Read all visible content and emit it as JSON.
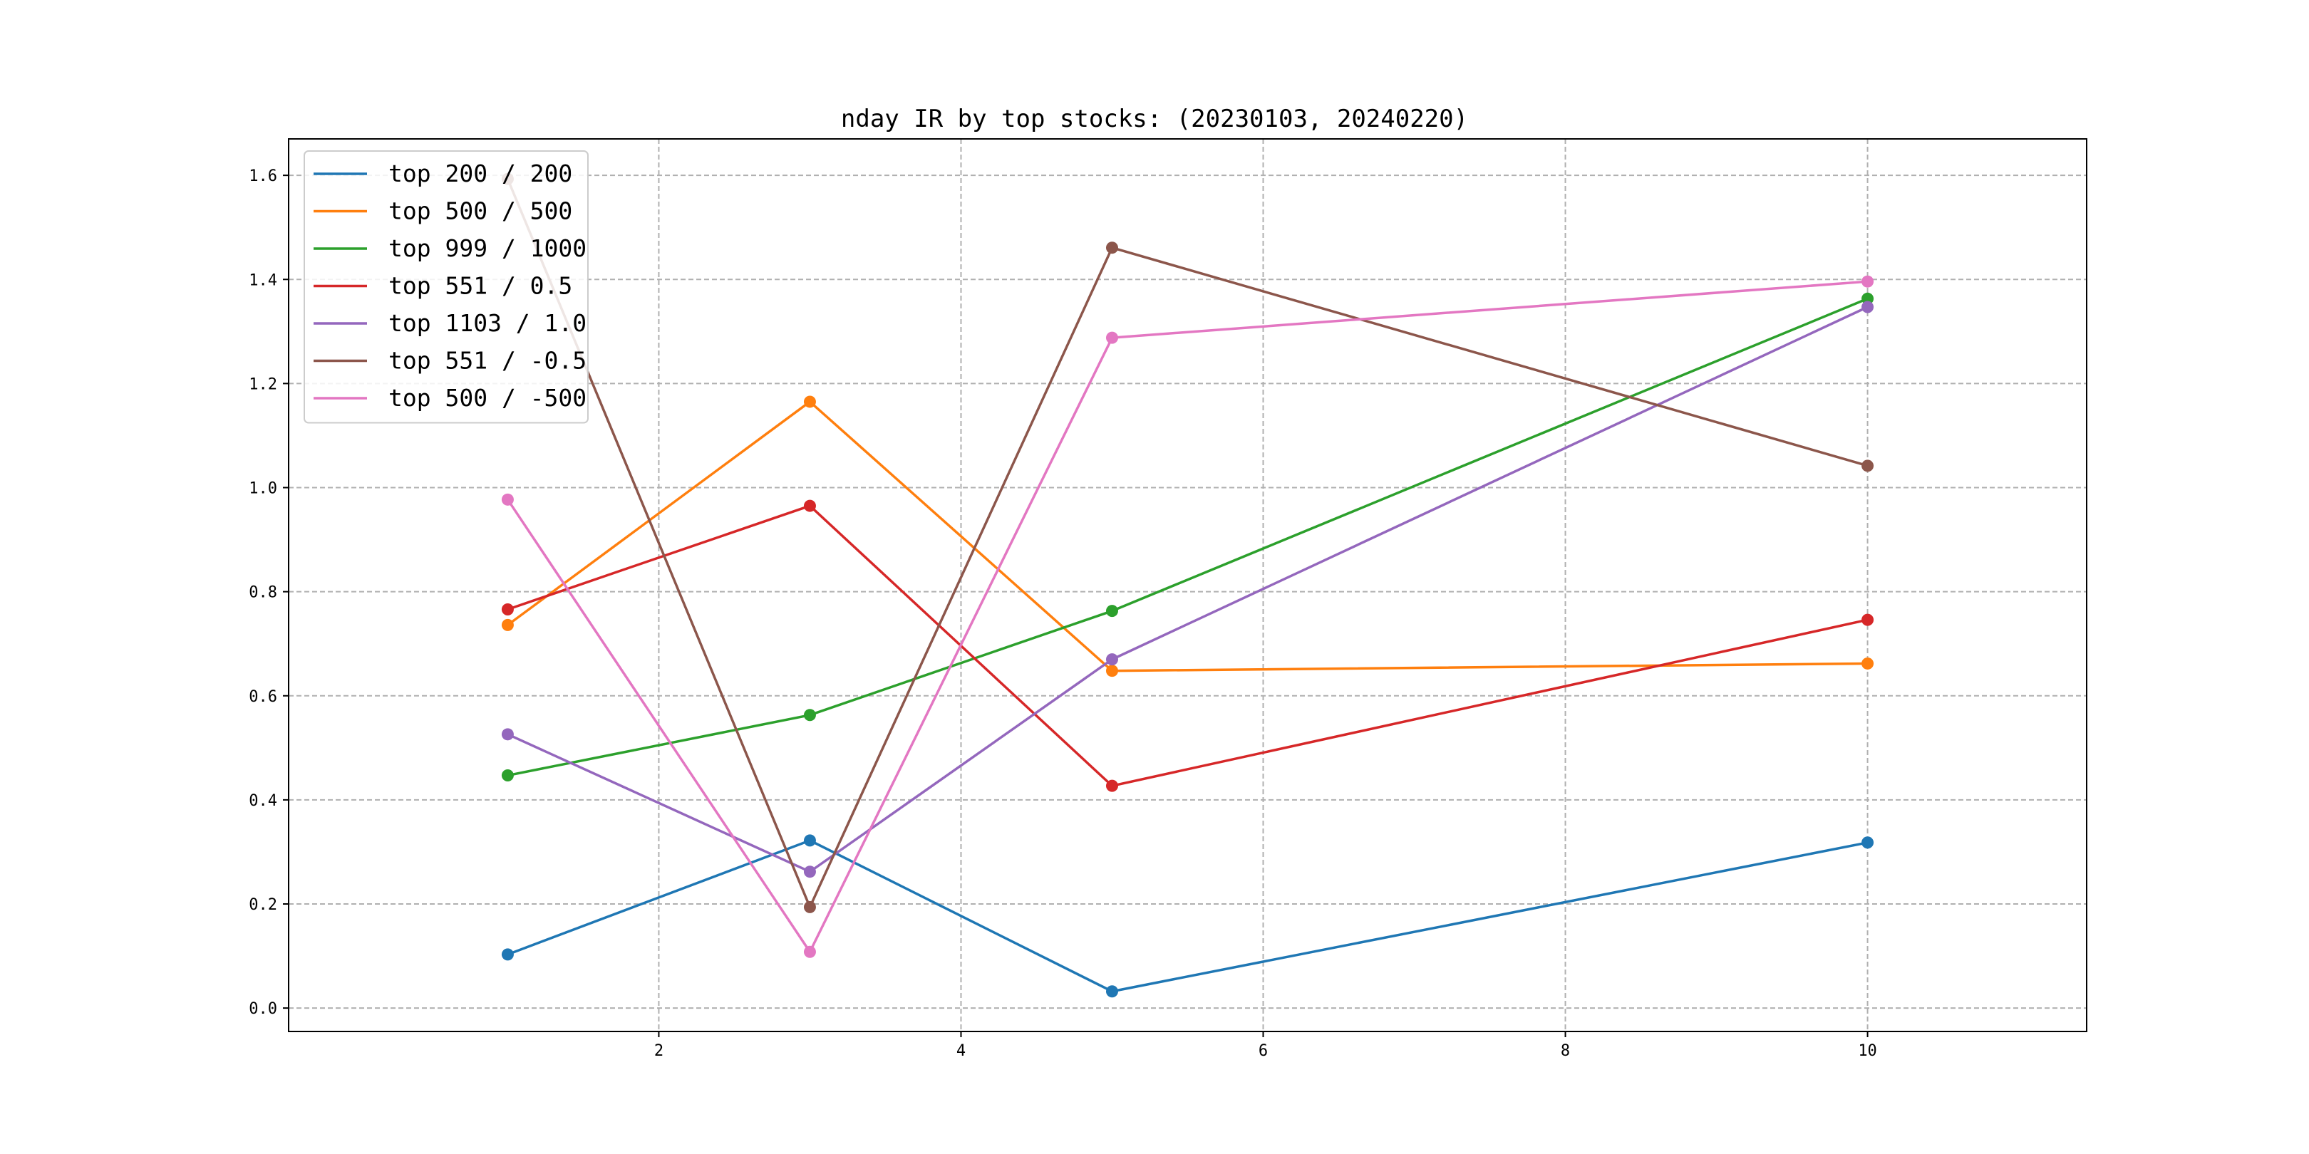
{
  "chart_data": {
    "type": "line",
    "title": "nday IR by top stocks: (20230103, 20240220)",
    "xlabel": "",
    "ylabel": "",
    "x": [
      1,
      3,
      5,
      10
    ],
    "xlim": [
      -0.45,
      11.45
    ],
    "ylim": [
      -0.045,
      1.67
    ],
    "xticks": [
      2,
      4,
      6,
      8,
      10
    ],
    "yticks": [
      0.0,
      0.2,
      0.4,
      0.6,
      0.8,
      1.0,
      1.2,
      1.4,
      1.6
    ],
    "grid": true,
    "grid_style": "dashed",
    "markers": true,
    "legend_position": "top-left",
    "series": [
      {
        "name": "top 200 / 200",
        "color": "#1f77b4",
        "values": [
          0.103,
          0.322,
          0.032,
          0.318
        ]
      },
      {
        "name": "top 500 / 500",
        "color": "#ff7f0e",
        "values": [
          0.736,
          1.165,
          0.648,
          0.662
        ]
      },
      {
        "name": "top 999 / 1000",
        "color": "#2ca02c",
        "values": [
          0.447,
          0.563,
          0.763,
          1.363
        ]
      },
      {
        "name": "top 551 / 0.5",
        "color": "#d62728",
        "values": [
          0.766,
          0.965,
          0.427,
          0.746
        ]
      },
      {
        "name": "top 1103 / 1.0",
        "color": "#9467bd",
        "values": [
          0.526,
          0.262,
          0.67,
          1.347
        ]
      },
      {
        "name": "top 551 / -0.5",
        "color": "#8c564b",
        "values": [
          1.593,
          0.194,
          1.461,
          1.042
        ]
      },
      {
        "name": "top 500 / -500",
        "color": "#e377c2",
        "values": [
          0.977,
          0.108,
          1.288,
          1.396
        ]
      }
    ]
  }
}
